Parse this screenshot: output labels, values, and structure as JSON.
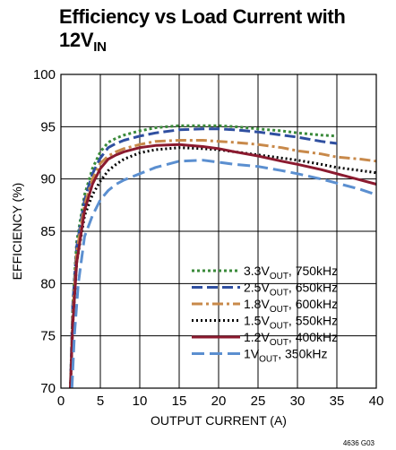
{
  "chart_data": {
    "type": "line",
    "title_main": "Efficiency vs Load Current with",
    "title_line2_base": "12V",
    "title_line2_sub": "IN",
    "xlabel": "OUTPUT CURRENT (A)",
    "ylabel": "EFFICIENCY (%)",
    "xlim": [
      0,
      40
    ],
    "ylim": [
      70,
      100
    ],
    "x_ticks": [
      0,
      5,
      10,
      15,
      20,
      25,
      30,
      35,
      40
    ],
    "y_ticks": [
      70,
      75,
      80,
      85,
      90,
      95,
      100
    ],
    "grid": true,
    "legend_position": "bottom-right",
    "figure_id": "4636 G03",
    "series": [
      {
        "name": "3.3VOUT, 750kHz",
        "label_pre": "3.3V",
        "label_sub": "OUT",
        "label_post": ", 750kHz",
        "color": "#3a8a3a",
        "dash": "3,3",
        "x": [
          1.2,
          1.5,
          2,
          3,
          4,
          5,
          6,
          7,
          8,
          10,
          12,
          15,
          18,
          20,
          22,
          25,
          28,
          30,
          33,
          35
        ],
        "y": [
          70,
          78,
          84,
          88.5,
          91,
          92.6,
          93.5,
          93.9,
          94.2,
          94.6,
          94.9,
          95.1,
          95.1,
          95.1,
          95.0,
          94.8,
          94.6,
          94.4,
          94.2,
          94.1
        ]
      },
      {
        "name": "2.5VOUT, 650kHz",
        "label_pre": "2.5V",
        "label_sub": "OUT",
        "label_post": ", 650kHz",
        "color": "#2f4fa0",
        "dash": "12,5",
        "x": [
          1.2,
          1.5,
          2,
          3,
          4,
          5,
          6,
          7,
          8,
          10,
          12,
          15,
          18,
          20,
          22,
          25,
          28,
          30,
          33,
          35
        ],
        "y": [
          70,
          78,
          83.5,
          88,
          90.5,
          92,
          93,
          93.4,
          93.7,
          94.1,
          94.4,
          94.7,
          94.8,
          94.8,
          94.7,
          94.5,
          94.2,
          94.0,
          93.6,
          93.4
        ]
      },
      {
        "name": "1.8VOUT, 600kHz",
        "label_pre": "1.8V",
        "label_sub": "OUT",
        "label_post": ", 600kHz",
        "color": "#c8894a",
        "dash": "12,4,3,4",
        "x": [
          1.2,
          1.5,
          2,
          3,
          4,
          5,
          6,
          7,
          8,
          10,
          12,
          15,
          18,
          20,
          22,
          25,
          28,
          30,
          33,
          35,
          38,
          40
        ],
        "y": [
          70,
          77,
          83,
          87.5,
          90,
          91.5,
          92.2,
          92.6,
          92.9,
          93.3,
          93.6,
          93.7,
          93.7,
          93.6,
          93.5,
          93.3,
          93.0,
          92.7,
          92.4,
          92.1,
          91.9,
          91.7
        ]
      },
      {
        "name": "1.5VOUT, 550kHz",
        "label_pre": "1.5V",
        "label_sub": "OUT",
        "label_post": ", 550kHz",
        "color": "#000000",
        "dash": "2,3",
        "x": [
          1.2,
          1.5,
          2,
          3,
          4,
          5,
          6,
          7,
          8,
          10,
          12,
          15,
          18,
          20,
          22,
          25,
          28,
          30,
          33,
          35,
          38,
          40
        ],
        "y": [
          70,
          76,
          82,
          86.5,
          88.5,
          89.8,
          90.8,
          91.4,
          91.9,
          92.5,
          92.8,
          93.0,
          92.9,
          92.8,
          92.6,
          92.3,
          92.0,
          91.8,
          91.4,
          91.1,
          90.8,
          90.6
        ]
      },
      {
        "name": "1.2VOUT, 400kHz",
        "label_pre": "1.2V",
        "label_sub": "OUT",
        "label_post": ", 400kHz",
        "color": "#8b1a2f",
        "dash": "",
        "x": [
          1.2,
          1.5,
          2,
          3,
          4,
          5,
          6,
          7,
          8,
          10,
          12,
          15,
          18,
          20,
          22,
          25,
          28,
          30,
          33,
          35,
          38,
          40
        ],
        "y": [
          70,
          76,
          82,
          87,
          89.5,
          91,
          91.9,
          92.3,
          92.6,
          93.0,
          93.2,
          93.3,
          93.1,
          92.9,
          92.6,
          92.2,
          91.7,
          91.4,
          90.9,
          90.5,
          89.9,
          89.5
        ]
      },
      {
        "name": "1VOUT, 350kHz",
        "label_pre": "1V",
        "label_sub": "OUT",
        "label_post": ", 350kHz",
        "color": "#5b8fd0",
        "dash": "14,6",
        "x": [
          1.4,
          1.7,
          2.2,
          3,
          4,
          5,
          6,
          7,
          8,
          10,
          12,
          15,
          18,
          20,
          22,
          25,
          28,
          30,
          33,
          35,
          38,
          40
        ],
        "y": [
          70,
          75,
          80,
          84.5,
          86.5,
          88,
          88.9,
          89.5,
          89.9,
          90.5,
          91.1,
          91.7,
          91.8,
          91.6,
          91.4,
          91.2,
          90.8,
          90.5,
          90.0,
          89.6,
          89.0,
          88.5
        ]
      }
    ]
  }
}
